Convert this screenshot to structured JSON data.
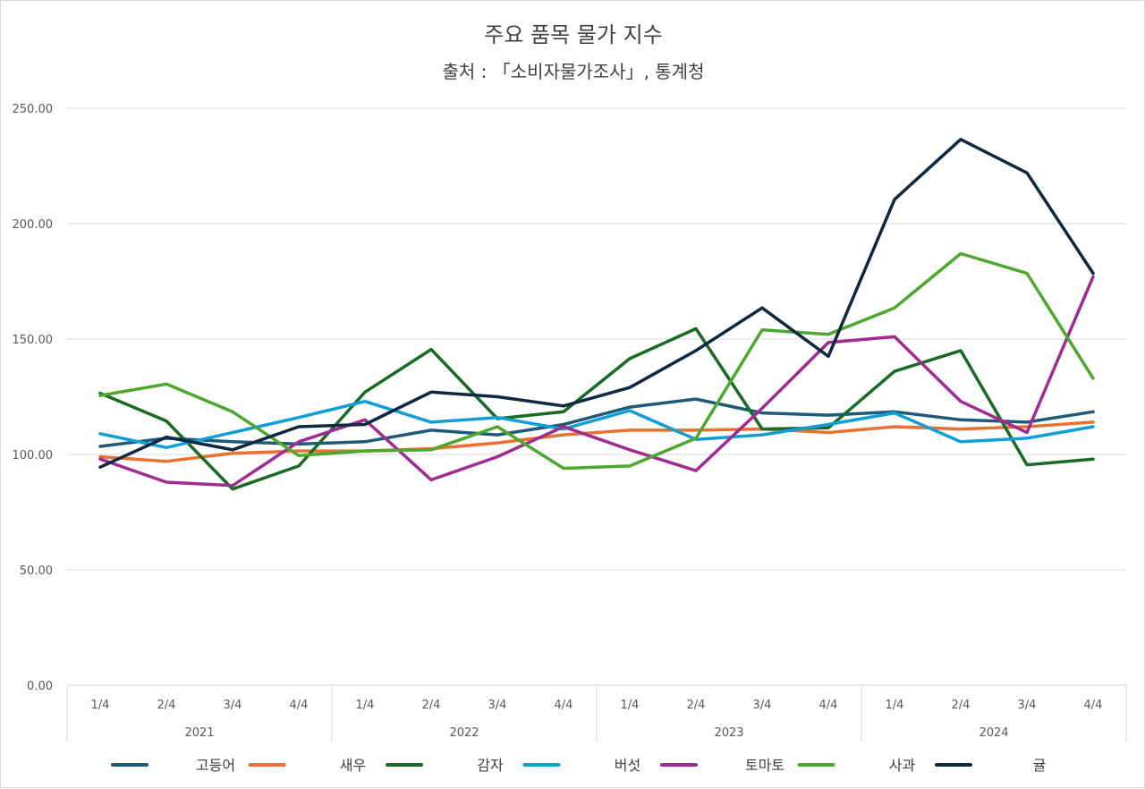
{
  "chart_data": {
    "type": "line",
    "title": "주요 품목 물가 지수",
    "subtitle": "출처 : 「소비자물가조사」, 통계청",
    "xlabel": "",
    "ylabel": "",
    "ylim": [
      0,
      250
    ],
    "y_ticks": [
      "0.00",
      "50.00",
      "100.00",
      "150.00",
      "200.00",
      "250.00"
    ],
    "y_tick_values": [
      0,
      50,
      100,
      150,
      200,
      250
    ],
    "grid": true,
    "legend_position": "bottom",
    "categories": [
      "1/4",
      "2/4",
      "3/4",
      "4/4",
      "1/4",
      "2/4",
      "3/4",
      "4/4",
      "1/4",
      "2/4",
      "3/4",
      "4/4",
      "1/4",
      "2/4",
      "3/4",
      "4/4"
    ],
    "groups": [
      {
        "label": "2021",
        "count": 4
      },
      {
        "label": "2022",
        "count": 4
      },
      {
        "label": "2023",
        "count": 4
      },
      {
        "label": "2024",
        "count": 4
      }
    ],
    "series": [
      {
        "name": "고등어",
        "color": "#1f5a7a",
        "values": [
          103.5,
          107.0,
          105.5,
          104.5,
          105.5,
          110.5,
          108.5,
          113.0,
          120.5,
          124.0,
          118.0,
          117.0,
          118.5,
          115.0,
          114.0,
          118.5
        ]
      },
      {
        "name": "새우",
        "color": "#e97132",
        "values": [
          99.0,
          97.0,
          100.5,
          101.5,
          101.5,
          102.5,
          105.0,
          108.5,
          110.5,
          110.5,
          111.0,
          109.5,
          112.0,
          111.0,
          112.0,
          114.0
        ]
      },
      {
        "name": "감자",
        "color": "#196b24",
        "values": [
          126.5,
          114.5,
          85.0,
          95.0,
          127.0,
          145.5,
          115.5,
          118.5,
          141.5,
          154.5,
          111.0,
          111.5,
          136.0,
          145.0,
          95.5,
          98.0
        ]
      },
      {
        "name": "버섯",
        "color": "#0f9ed5",
        "values": [
          109.0,
          103.0,
          109.5,
          116.0,
          123.0,
          114.0,
          116.0,
          111.0,
          119.0,
          106.5,
          108.5,
          113.0,
          118.0,
          105.5,
          107.0,
          112.0
        ]
      },
      {
        "name": "토마토",
        "color": "#a02b93",
        "values": [
          98.0,
          88.0,
          86.5,
          105.5,
          115.0,
          89.0,
          99.0,
          112.0,
          102.0,
          93.0,
          120.0,
          148.5,
          151.0,
          123.0,
          109.5,
          177.0
        ]
      },
      {
        "name": "사과",
        "color": "#4ea72e",
        "values": [
          125.5,
          130.5,
          118.5,
          99.5,
          101.5,
          102.0,
          112.0,
          94.0,
          95.0,
          107.0,
          154.0,
          152.0,
          163.5,
          187.0,
          178.5,
          133.0
        ]
      },
      {
        "name": "귤",
        "color": "#0e2841",
        "values": [
          94.5,
          107.5,
          102.0,
          112.0,
          113.0,
          127.0,
          125.0,
          121.0,
          129.0,
          145.0,
          163.5,
          142.5,
          210.5,
          236.5,
          222.0,
          178.5
        ]
      }
    ]
  }
}
